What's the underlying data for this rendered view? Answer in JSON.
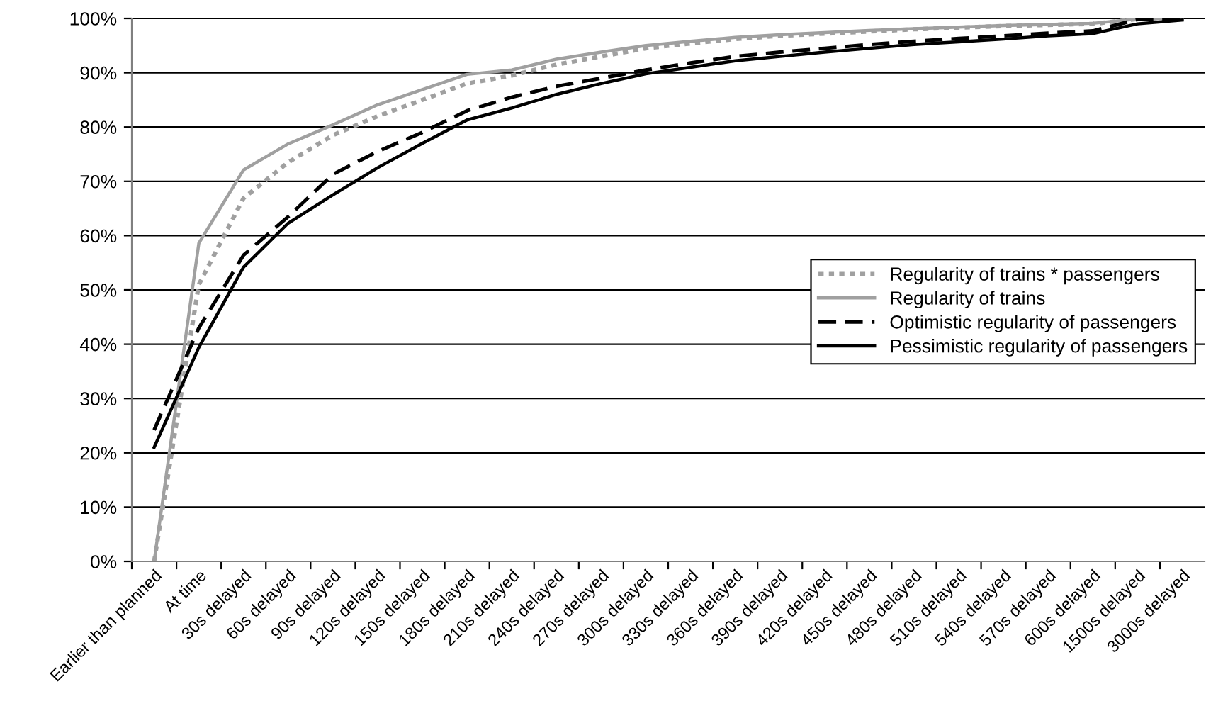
{
  "chart_data": {
    "type": "line",
    "categories": [
      "Earlier than planned",
      "At time",
      "30s delayed",
      "60s delayed",
      "90s delayed",
      "120s delayed",
      "150s delayed",
      "180s delayed",
      "210s delayed",
      "240s delayed",
      "270s delayed",
      "300s delayed",
      "330s delayed",
      "360s delayed",
      "390s delayed",
      "420s delayed",
      "450s delayed",
      "480s delayed",
      "510s delayed",
      "540s delayed",
      "570s delayed",
      "600s delayed",
      "1500s delayed",
      "3000s delayed"
    ],
    "series": [
      {
        "name": "Regularity of trains * passengers",
        "color": "#a0a0a0",
        "line_style": "dotted",
        "values": [
          0,
          51,
          66.9,
          73.5,
          78.5,
          82,
          85,
          88,
          89.5,
          91.5,
          93,
          94.5,
          95.4,
          96.2,
          96.8,
          97.2,
          97.6,
          98,
          98.3,
          98.6,
          98.8,
          99,
          99.9,
          100
        ]
      },
      {
        "name": "Regularity of trains",
        "color": "#a0a0a0",
        "line_style": "solid",
        "values": [
          0,
          58.6,
          72.1,
          76.9,
          80.4,
          84.1,
          86.9,
          89.7,
          90.5,
          92.5,
          93.8,
          95,
          95.8,
          96.5,
          97,
          97.4,
          97.8,
          98.1,
          98.4,
          98.7,
          98.9,
          99.1,
          99.9,
          100
        ]
      },
      {
        "name": "Optimistic regularity of passengers",
        "color": "#000000",
        "line_style": "dashed",
        "values": [
          24.2,
          43,
          56.4,
          63.5,
          71.3,
          75.5,
          79,
          83,
          85.5,
          87.5,
          89,
          90.5,
          91.8,
          93,
          93.8,
          94.5,
          95.2,
          95.8,
          96.3,
          96.8,
          97.3,
          97.7,
          99.8,
          100
        ]
      },
      {
        "name": "Pessimistic regularity of passengers",
        "color": "#000000",
        "line_style": "solid",
        "values": [
          21,
          39.4,
          54.2,
          62.3,
          67.5,
          72.5,
          77,
          81.3,
          83.5,
          86,
          88,
          89.8,
          91,
          92.2,
          93,
          93.8,
          94.5,
          95.2,
          95.7,
          96.2,
          96.8,
          97.2,
          99,
          99.7
        ]
      }
    ],
    "ylim": [
      0,
      100
    ],
    "yticks": [
      {
        "value": 0,
        "label": "0%"
      },
      {
        "value": 10,
        "label": "10%"
      },
      {
        "value": 20,
        "label": "20%"
      },
      {
        "value": 30,
        "label": "30%"
      },
      {
        "value": 40,
        "label": "40%"
      },
      {
        "value": 50,
        "label": "50%"
      },
      {
        "value": 60,
        "label": "60%"
      },
      {
        "value": 70,
        "label": "70%"
      },
      {
        "value": 80,
        "label": "80%"
      },
      {
        "value": 90,
        "label": "90%"
      },
      {
        "value": 100,
        "label": "100%"
      }
    ],
    "grid": "y",
    "legend": "right",
    "marker": "none"
  }
}
